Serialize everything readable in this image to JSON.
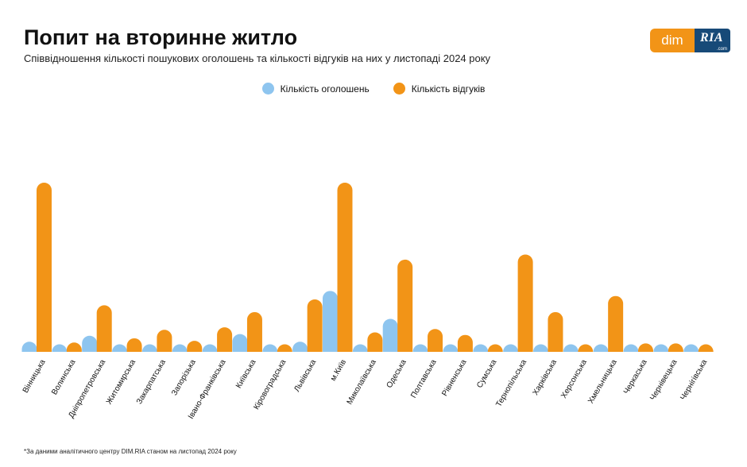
{
  "header": {
    "title": "Попит на вторинне житло",
    "subtitle": "Співвідношення кількості пошукових оголошень та кількості відгуків на них у листопаді 2024 року"
  },
  "logo": {
    "left": "dim",
    "right": "RIA",
    "domain": ".com"
  },
  "footnote": "*За даними аналітичного центру DIM.RIA станом на листопад 2024 року",
  "colors": {
    "listings": "#8ec5ef",
    "responses": "#f29417"
  },
  "chart_data": {
    "type": "bar",
    "legend_position": "top-center",
    "grid": false,
    "ylim": [
      0,
      100
    ],
    "categories": [
      "Вінницька",
      "Волинська",
      "Дніпропетровська",
      "Житомирська",
      "Закарпатська",
      "Запорізька",
      "Івано-Франківська",
      "Київська",
      "Кіровоградська",
      "Львівська",
      "м.Київ",
      "Миколаївська",
      "Одеська",
      "Полтавська",
      "Рівненська",
      "Сумська",
      "Тернопільська",
      "Харківська",
      "Херсонська",
      "Хмельницька",
      "Черкаська",
      "Чернівецька",
      "Чернігівська"
    ],
    "series": [
      {
        "name": "Кількість оголошень",
        "values": [
          6,
          0.6,
          9.5,
          1.5,
          1.5,
          2.5,
          4,
          10.5,
          0.6,
          6,
          36,
          2,
          19.5,
          2.5,
          2.5,
          0.6,
          3,
          4,
          0.5,
          4,
          0.6,
          0.7,
          0.5
        ]
      },
      {
        "name": "Кількість відгуків",
        "values": [
          100,
          5.5,
          27.5,
          8,
          13,
          6.5,
          14.5,
          23.5,
          3,
          31,
          100,
          11.5,
          54.5,
          13.5,
          10,
          2.5,
          57.5,
          23.5,
          0.5,
          33,
          5,
          5,
          3
        ]
      }
    ]
  }
}
